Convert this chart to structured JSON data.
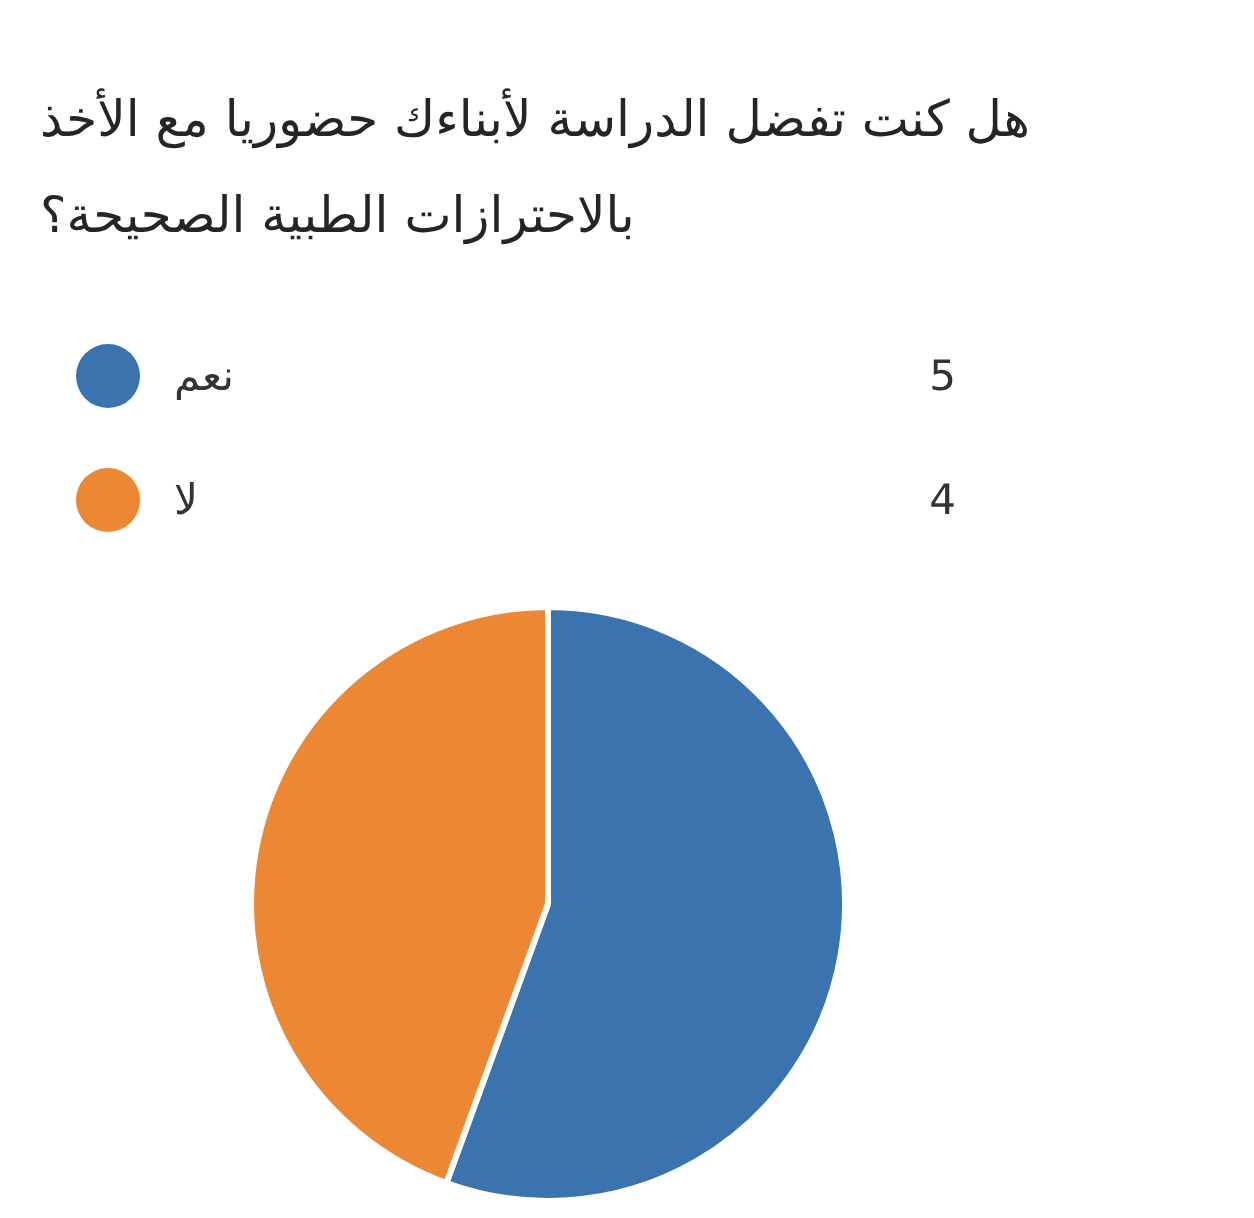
{
  "chart_data": {
    "type": "pie",
    "title": "هل كنت تفضل الدراسة لأبناءك حضوريا مع الأخذ بالاحترازات الطبية الصحيحة؟",
    "categories": [
      "نعم",
      "لا"
    ],
    "values": [
      5,
      4
    ],
    "colors": [
      "#3a73ad",
      "#ec8734"
    ],
    "legend": "top",
    "data_labels": true
  }
}
